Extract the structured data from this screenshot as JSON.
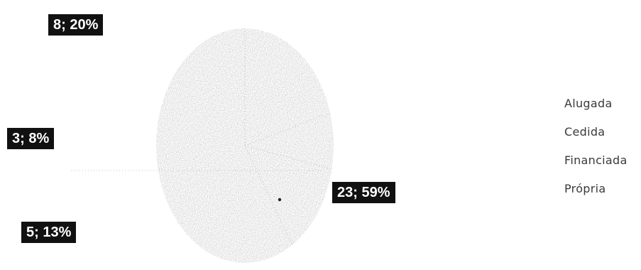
{
  "chart_data": {
    "type": "pie",
    "categories": [
      "Alugada",
      "Cedida",
      "Financiada",
      "Própria"
    ],
    "values": [
      8,
      3,
      5,
      23
    ],
    "percentages": [
      "20%",
      "8%",
      "13%",
      "59%"
    ],
    "data_labels": [
      "8; 20%",
      "3; 8%",
      "5; 13%",
      "23; 59%"
    ],
    "legend": {
      "placement": "right",
      "entries": [
        "Alugada",
        "Cedida",
        "Financiada",
        "Própria"
      ]
    },
    "title": "",
    "series_colors": [
      "#cfcfcf",
      "#c8c8c8",
      "#d3d3d3",
      "#cacaca"
    ]
  }
}
